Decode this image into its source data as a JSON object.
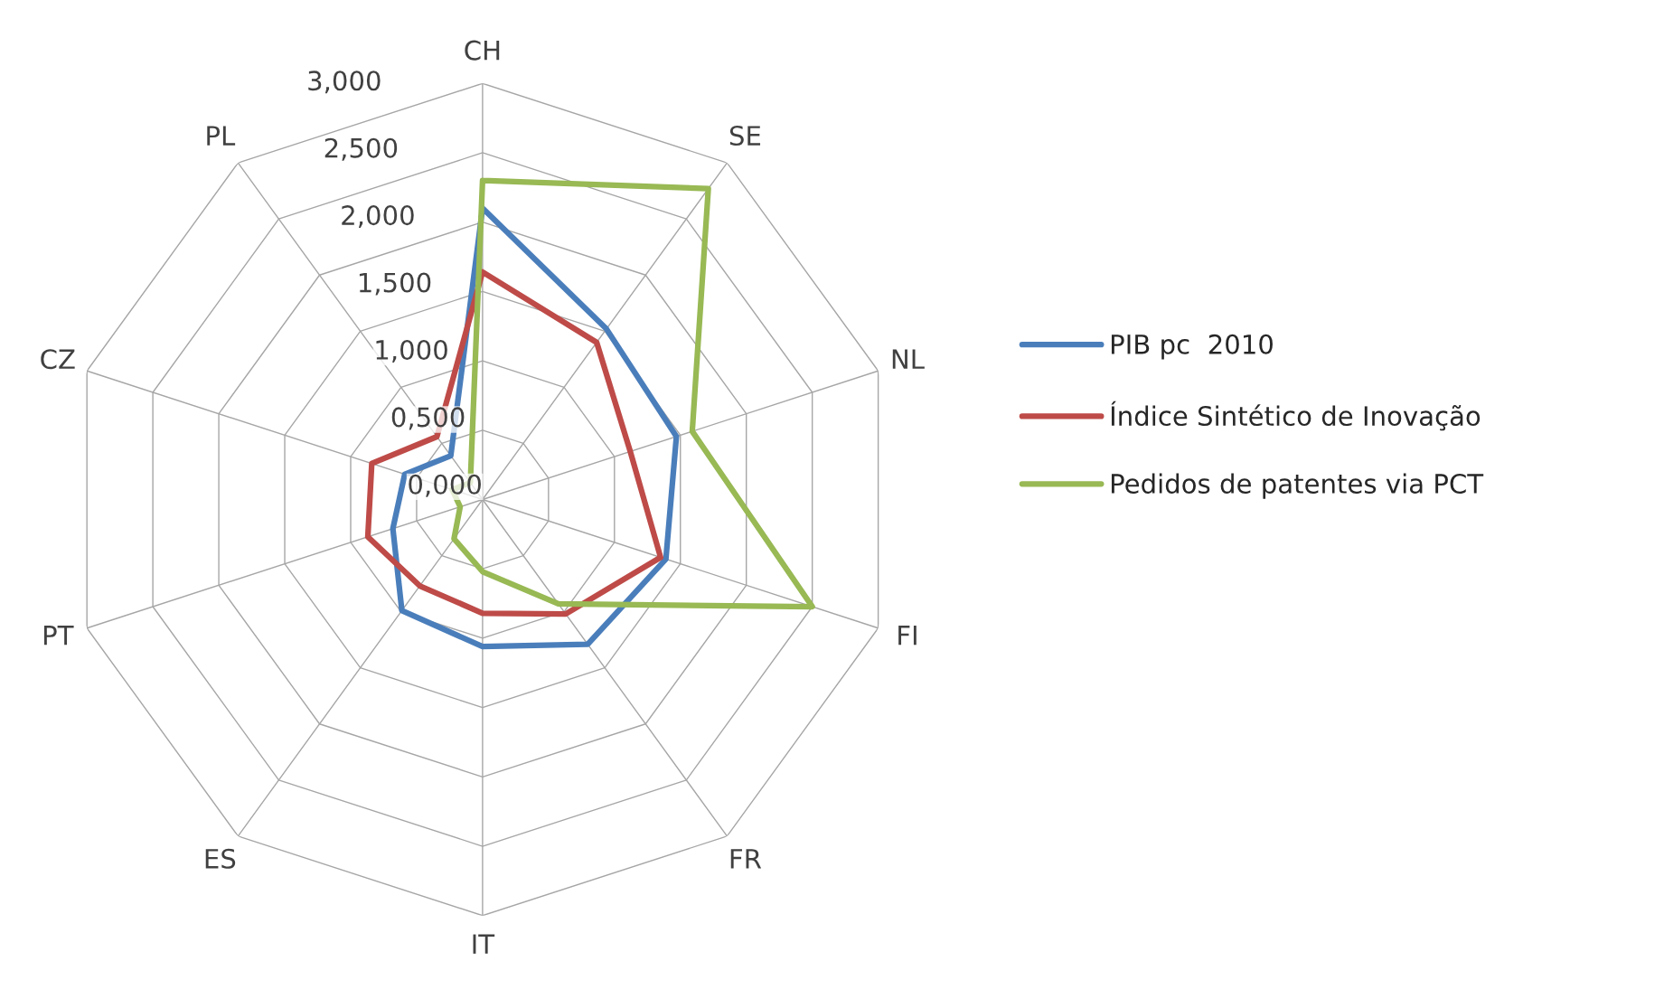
{
  "chart_data": {
    "type": "radar",
    "categories": [
      "CH",
      "SE",
      "NL",
      "FI",
      "FR",
      "IT",
      "ES",
      "PT",
      "CZ",
      "PL"
    ],
    "ylim": [
      0,
      3
    ],
    "yticks": [
      {
        "value": 0,
        "label": "0,000"
      },
      {
        "value": 0.5,
        "label": "0,500"
      },
      {
        "value": 1,
        "label": "1,000"
      },
      {
        "value": 1.5,
        "label": "1,500"
      },
      {
        "value": 2,
        "label": "2,000"
      },
      {
        "value": 2.5,
        "label": "2,500"
      },
      {
        "value": 3,
        "label": "3,000"
      }
    ],
    "grid": true,
    "legend": "right",
    "marker": "none",
    "line_style": "solid",
    "series": [
      {
        "name": "PIB pc  2010",
        "color": "#4a7ebb",
        "values": [
          2.1,
          1.52,
          1.47,
          1.39,
          1.29,
          1.06,
          0.99,
          0.68,
          0.59,
          0.39
        ]
      },
      {
        "name": "Índice Sintético de Inovação",
        "color": "#be4b48",
        "values": [
          1.64,
          1.4,
          1.12,
          1.35,
          1.02,
          0.82,
          0.77,
          0.87,
          0.84,
          0.56
        ]
      },
      {
        "name": "Pedidos de patentes via PCT",
        "color": "#98b954",
        "values": [
          2.3,
          2.77,
          1.59,
          2.5,
          0.93,
          0.52,
          0.35,
          0.17,
          0.23,
          0.15
        ]
      }
    ]
  }
}
